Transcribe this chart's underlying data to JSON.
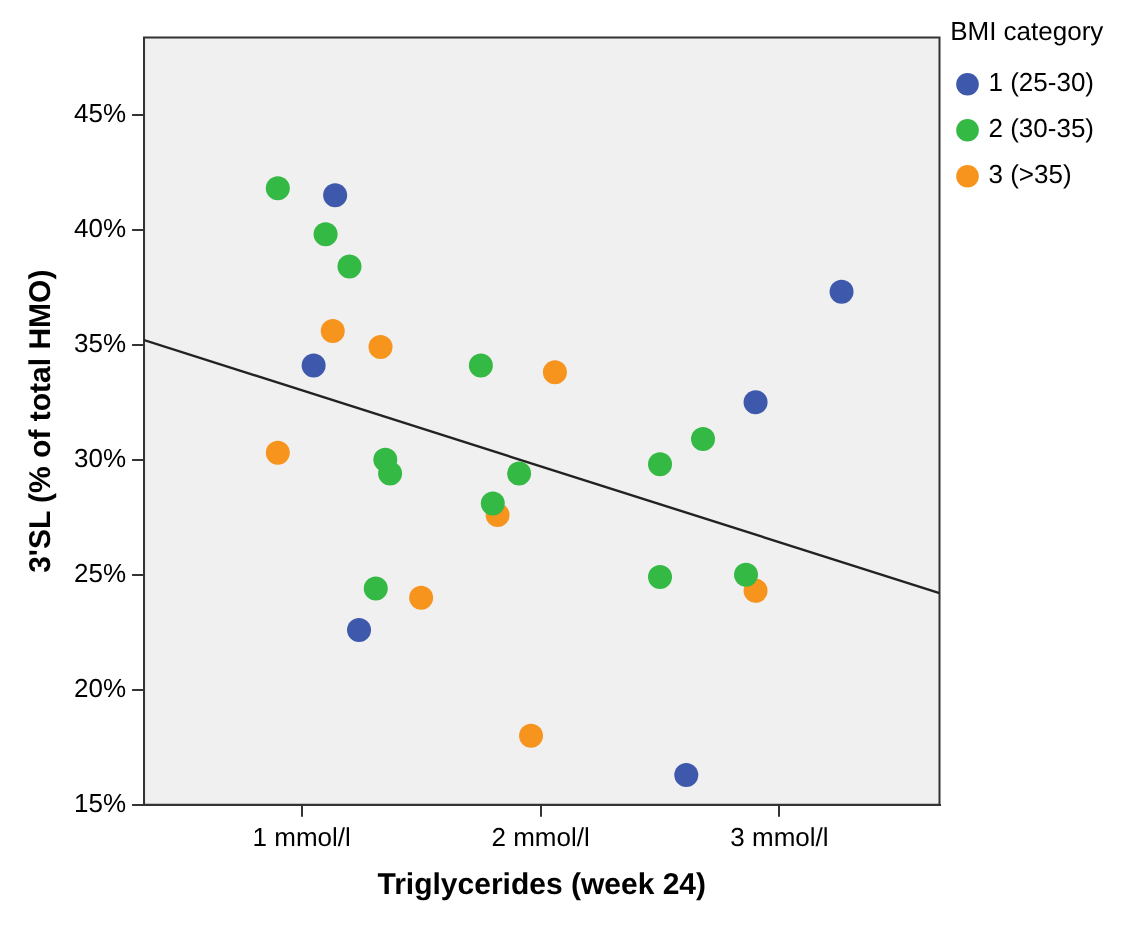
{
  "chart_data": {
    "type": "scatter",
    "xlabel": "Triglycerides (week 24)",
    "ylabel": "3'SL (% of total HMO)",
    "legend_title": "BMI category",
    "legend": "top right",
    "grid": false,
    "xlim": [
      0.34,
      3.67
    ],
    "ylim": [
      15,
      48.35
    ],
    "xticks": [
      {
        "value": 1,
        "label": "1 mmol/l"
      },
      {
        "value": 2,
        "label": "2 mmol/l"
      },
      {
        "value": 3,
        "label": "3 mmol/l"
      }
    ],
    "yticks": [
      {
        "value": 15,
        "label": "15%"
      },
      {
        "value": 20,
        "label": "20%"
      },
      {
        "value": 25,
        "label": "25%"
      },
      {
        "value": 30,
        "label": "30%"
      },
      {
        "value": 35,
        "label": "35%"
      },
      {
        "value": 40,
        "label": "40%"
      },
      {
        "value": 45,
        "label": "45%"
      }
    ],
    "series": [
      {
        "name": "1 (25-30)",
        "color": "#3e58ac",
        "marker": "circle",
        "x": [
          1.14,
          1.05,
          3.26,
          2.9,
          1.24,
          2.61
        ],
        "values": [
          41.5,
          34.1,
          37.3,
          32.5,
          22.6,
          16.3
        ]
      },
      {
        "name": "2 (30-35)",
        "color": "#33b944",
        "marker": "circle",
        "x": [
          0.9,
          1.1,
          1.2,
          1.75,
          2.68,
          1.35,
          1.37,
          1.91,
          2.5,
          1.8,
          2.5,
          2.86,
          1.31
        ],
        "values": [
          41.8,
          39.8,
          38.4,
          34.1,
          30.9,
          30.0,
          29.4,
          29.4,
          29.8,
          28.1,
          24.9,
          25.0,
          24.4
        ]
      },
      {
        "name": "3 (>35)",
        "color": "#f7941d",
        "marker": "circle",
        "x": [
          1.13,
          1.33,
          2.06,
          0.9,
          1.82,
          2.9,
          1.5,
          1.96
        ],
        "values": [
          35.6,
          34.9,
          33.8,
          30.3,
          27.6,
          24.3,
          24.0,
          18.0
        ]
      },
      {
        "type": "line",
        "color": "#222222",
        "marker": "none",
        "x": [
          0.34,
          3.67
        ],
        "values": [
          35.2,
          24.2
        ]
      }
    ]
  }
}
